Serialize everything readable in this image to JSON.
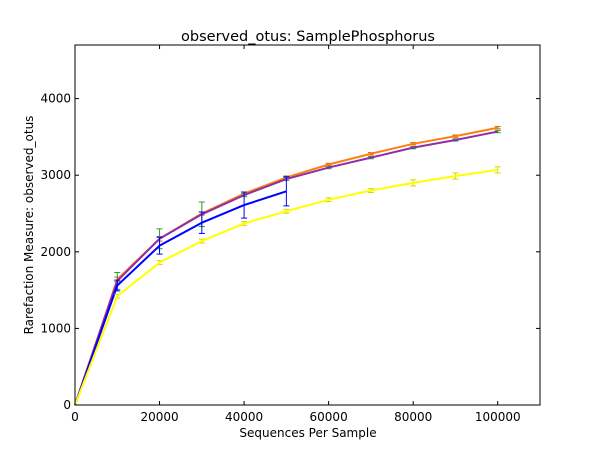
{
  "chart_data": {
    "type": "line",
    "title": "observed_otus: SamplePhosphorus",
    "xlabel": "Sequences Per Sample",
    "ylabel": "Rarefaction Measure: observed_otus",
    "xlim": [
      0,
      110000
    ],
    "ylim": [
      0,
      4700
    ],
    "xticks": [
      0,
      20000,
      40000,
      60000,
      80000,
      100000
    ],
    "yticks": [
      0,
      1000,
      2000,
      3000,
      4000
    ],
    "grid": false,
    "series": [
      {
        "color": "#ff7f0e",
        "error_color": "#cc6600",
        "x": [
          0,
          10000,
          20000,
          30000,
          40000,
          50000,
          60000,
          70000,
          80000,
          90000,
          100000
        ],
        "y": [
          0,
          1640,
          2170,
          2500,
          2760,
          2970,
          3140,
          3280,
          3410,
          3510,
          3620
        ],
        "err": [
          0,
          30,
          30,
          20,
          20,
          20,
          15,
          15,
          15,
          15,
          15
        ]
      },
      {
        "color": "#8e2ea8",
        "error_color": "#2ca02c",
        "x": [
          0,
          10000,
          20000,
          30000,
          40000,
          50000,
          60000,
          70000,
          80000,
          90000,
          100000
        ],
        "y": [
          0,
          1620,
          2170,
          2490,
          2740,
          2950,
          3100,
          3230,
          3360,
          3460,
          3570
        ],
        "err": [
          0,
          110,
          130,
          160,
          20,
          20,
          15,
          15,
          15,
          15,
          15
        ]
      },
      {
        "color": "#0000ff",
        "error_color": "#0000ff",
        "x": [
          0,
          10000,
          20000,
          30000,
          40000,
          50000
        ],
        "y": [
          0,
          1560,
          2080,
          2380,
          2610,
          2790
        ],
        "err": [
          0,
          70,
          110,
          140,
          170,
          190
        ]
      },
      {
        "color": "#ffff00",
        "error_color": "#d4d400",
        "x": [
          0,
          10000,
          20000,
          30000,
          40000,
          50000,
          60000,
          70000,
          80000,
          90000,
          100000
        ],
        "y": [
          0,
          1420,
          1860,
          2140,
          2370,
          2530,
          2680,
          2800,
          2900,
          2990,
          3070
        ],
        "err": [
          0,
          25,
          25,
          25,
          25,
          25,
          25,
          25,
          40,
          40,
          40
        ]
      }
    ]
  }
}
